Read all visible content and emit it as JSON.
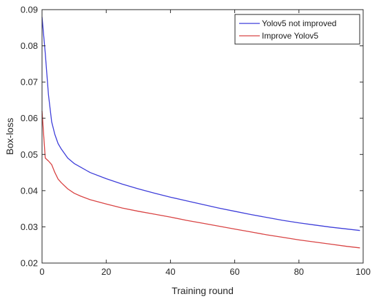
{
  "chart_data": {
    "type": "line",
    "xlabel": "Training round",
    "ylabel": "Box-loss",
    "xlim": [
      0,
      100
    ],
    "ylim": [
      0.02,
      0.09
    ],
    "x_ticks": [
      0,
      20,
      40,
      60,
      80,
      100
    ],
    "y_ticks": [
      0.02,
      0.03,
      0.04,
      0.05,
      0.06,
      0.07,
      0.08,
      0.09
    ],
    "grid": false,
    "legend_position": "top-right",
    "series": [
      {
        "name": "Yolov5 not improved",
        "color": "#3b3bd9",
        "x": [
          0,
          1,
          2,
          3,
          4,
          5,
          6,
          8,
          10,
          12,
          15,
          20,
          25,
          30,
          35,
          40,
          45,
          50,
          55,
          60,
          65,
          70,
          75,
          80,
          85,
          90,
          95,
          99
        ],
        "y": [
          0.088,
          0.078,
          0.0665,
          0.059,
          0.0555,
          0.053,
          0.0515,
          0.049,
          0.0475,
          0.0465,
          0.045,
          0.0433,
          0.0418,
          0.0405,
          0.0393,
          0.0382,
          0.0372,
          0.0362,
          0.0352,
          0.0343,
          0.0334,
          0.0326,
          0.0318,
          0.0311,
          0.0305,
          0.0299,
          0.0294,
          0.029
        ]
      },
      {
        "name": "Improve Yolov5",
        "color": "#d84040",
        "x": [
          0,
          1,
          2,
          3,
          4,
          5,
          6,
          8,
          10,
          12,
          15,
          20,
          25,
          30,
          35,
          40,
          45,
          50,
          55,
          60,
          65,
          70,
          75,
          80,
          85,
          90,
          95,
          99
        ],
        "y": [
          0.062,
          0.049,
          0.0482,
          0.0472,
          0.045,
          0.0432,
          0.0422,
          0.0405,
          0.0393,
          0.0385,
          0.0375,
          0.0363,
          0.0352,
          0.0343,
          0.0335,
          0.0327,
          0.0318,
          0.031,
          0.0302,
          0.0294,
          0.0286,
          0.0278,
          0.0271,
          0.0264,
          0.0258,
          0.0252,
          0.0246,
          0.0242
        ]
      }
    ]
  }
}
